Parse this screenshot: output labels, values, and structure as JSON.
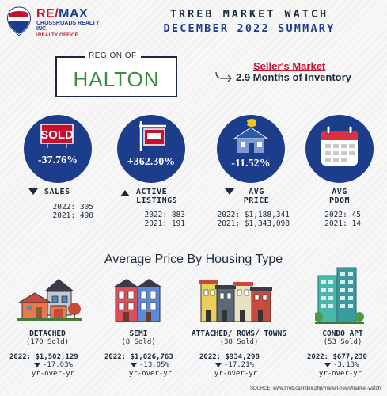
{
  "header": {
    "brand_prefix": "RE/",
    "brand_suffix": "MAX",
    "brand_sub": "CROSSROADS REALTY INC.",
    "brand_office": "iREALTY OFFICE",
    "title": "TRREB MARKET WATCH",
    "subtitle": "DECEMBER 2022 SUMMARY"
  },
  "region": {
    "label": "REGION OF",
    "name": "HALTON"
  },
  "market": {
    "type": "Seller's Market",
    "inventory": "2.9 Months of Inventory"
  },
  "stats": [
    {
      "pct": "-37.76%",
      "label": "SALES",
      "label2": "",
      "y2022": "2022: 305",
      "y2021": "2021: 490",
      "icon": "sold-sign-icon"
    },
    {
      "pct": "+362.30%",
      "label": "ACTIVE",
      "label2": "LISTINGS",
      "y2022": "2022: 883",
      "y2021": "2021: 191",
      "icon": "for-sale-sign-icon"
    },
    {
      "pct": "-11.52%",
      "label": "AVG",
      "label2": "PRICE",
      "y2022": "2022: $1,188,341",
      "y2021": "2021: $1,343,098",
      "icon": "house-money-icon"
    },
    {
      "pct": "",
      "label": "AVG",
      "label2": "PDOM",
      "y2022": "2022: 45",
      "y2021": "2021: 14",
      "icon": "calendar-icon"
    }
  ],
  "section_title": "Average Price By Housing Type",
  "housing": [
    {
      "name": "DETACHED",
      "sold": "(170 Sold)",
      "price": "2022: $1,502,129",
      "change": "-17.03%",
      "yoy": "yr-over-yr",
      "icon": "detached-house-icon"
    },
    {
      "name": "SEMI",
      "sold": "(8 Sold)",
      "price": "2022: $1,026,763",
      "change": "-13.05%",
      "yoy": "yr-over-yr",
      "icon": "semi-house-icon"
    },
    {
      "name": "ATTACHED/ ROWS/ TOWNS",
      "sold": "(38 Sold)",
      "price": "2022: $934,298",
      "change": "-17.21%",
      "yoy": "yr-over-yr",
      "icon": "townhouse-icon"
    },
    {
      "name": "CONDO APT",
      "sold": "(53 Sold)",
      "price": "2022: $677,230",
      "change": "-3.13%",
      "yoy": "yr-over-yr",
      "icon": "condo-building-icon"
    }
  ],
  "source": "SOURCE: www.trreb.ca/index.php/market-news/market-watch",
  "colors": {
    "navy": "#1c3c8c",
    "red": "#c8102e",
    "green": "#3c8c3c",
    "dark": "#1a2a3a"
  }
}
